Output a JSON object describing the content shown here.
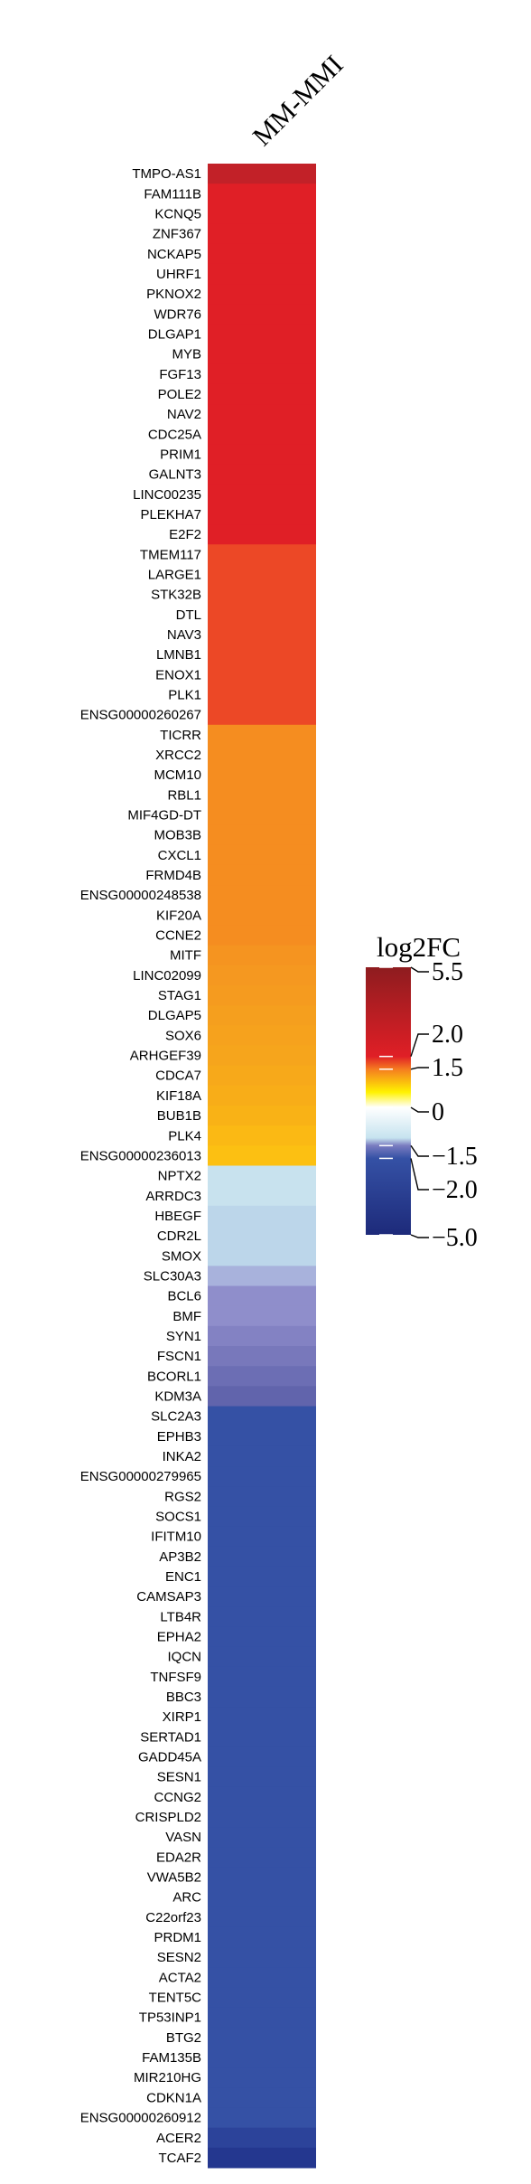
{
  "chart_data": {
    "type": "heatmap",
    "column": "MM-MMI",
    "rows": [
      {
        "gene": "TMPO-AS1",
        "color": "#c22128"
      },
      {
        "gene": "FAM111B",
        "color": "#e01f26"
      },
      {
        "gene": "KCNQ5",
        "color": "#e01f26"
      },
      {
        "gene": "ZNF367",
        "color": "#e01f26"
      },
      {
        "gene": "NCKAP5",
        "color": "#e01f26"
      },
      {
        "gene": "UHRF1",
        "color": "#e01f26"
      },
      {
        "gene": "PKNOX2",
        "color": "#e01f26"
      },
      {
        "gene": "WDR76",
        "color": "#e01f26"
      },
      {
        "gene": "DLGAP1",
        "color": "#e01f26"
      },
      {
        "gene": "MYB",
        "color": "#e01f26"
      },
      {
        "gene": "FGF13",
        "color": "#e01f26"
      },
      {
        "gene": "POLE2",
        "color": "#e01f26"
      },
      {
        "gene": "NAV2",
        "color": "#e01f26"
      },
      {
        "gene": "CDC25A",
        "color": "#e01f26"
      },
      {
        "gene": "PRIM1",
        "color": "#e01f26"
      },
      {
        "gene": "GALNT3",
        "color": "#e01f26"
      },
      {
        "gene": "LINC00235",
        "color": "#e01f26"
      },
      {
        "gene": "PLEKHA7",
        "color": "#e01f26"
      },
      {
        "gene": "E2F2",
        "color": "#e01f26"
      },
      {
        "gene": "TMEM117",
        "color": "#ec4826"
      },
      {
        "gene": "LARGE1",
        "color": "#ec4826"
      },
      {
        "gene": "STK32B",
        "color": "#ec4826"
      },
      {
        "gene": "DTL",
        "color": "#ec4826"
      },
      {
        "gene": "NAV3",
        "color": "#ec4826"
      },
      {
        "gene": "LMNB1",
        "color": "#ec4826"
      },
      {
        "gene": "ENOX1",
        "color": "#ec4826"
      },
      {
        "gene": "PLK1",
        "color": "#ec4826"
      },
      {
        "gene": "ENSG00000260267",
        "color": "#ec4826"
      },
      {
        "gene": "TICRR",
        "color": "#f58d20"
      },
      {
        "gene": "XRCC2",
        "color": "#f58d20"
      },
      {
        "gene": "MCM10",
        "color": "#f58d20"
      },
      {
        "gene": "RBL1",
        "color": "#f58d20"
      },
      {
        "gene": "MIF4GD-DT",
        "color": "#f58d20"
      },
      {
        "gene": "MOB3B",
        "color": "#f58d20"
      },
      {
        "gene": "CXCL1",
        "color": "#f58d20"
      },
      {
        "gene": "FRMD4B",
        "color": "#f58d20"
      },
      {
        "gene": "ENSG00000248538",
        "color": "#f58d20"
      },
      {
        "gene": "KIF20A",
        "color": "#f58d20"
      },
      {
        "gene": "CCNE2",
        "color": "#f58d20"
      },
      {
        "gene": "MITF",
        "color": "#f59420"
      },
      {
        "gene": "LINC02099",
        "color": "#f59820"
      },
      {
        "gene": "STAG1",
        "color": "#f59b1f"
      },
      {
        "gene": "DLGAP5",
        "color": "#f59f1e"
      },
      {
        "gene": "SOX6",
        "color": "#f6a21d"
      },
      {
        "gene": "ARHGEF39",
        "color": "#f6a51c"
      },
      {
        "gene": "CDCA7",
        "color": "#f7a91a"
      },
      {
        "gene": "KIF18A",
        "color": "#f8ad18"
      },
      {
        "gene": "BUB1B",
        "color": "#f9b216"
      },
      {
        "gene": "PLK4",
        "color": "#fbb914"
      },
      {
        "gene": "ENSG00000236013",
        "color": "#fcc012"
      },
      {
        "gene": "NPTX2",
        "color": "#c8e2ee"
      },
      {
        "gene": "ARRDC3",
        "color": "#c8e2ee"
      },
      {
        "gene": "HBEGF",
        "color": "#bcd6ea"
      },
      {
        "gene": "CDR2L",
        "color": "#bcd6ea"
      },
      {
        "gene": "SMOX",
        "color": "#bcd6ea"
      },
      {
        "gene": "SLC30A3",
        "color": "#a8b2dc"
      },
      {
        "gene": "BCL6",
        "color": "#8f8ecb"
      },
      {
        "gene": "BMF",
        "color": "#8f8ecb"
      },
      {
        "gene": "SYN1",
        "color": "#8382c3"
      },
      {
        "gene": "FSCN1",
        "color": "#7878bb"
      },
      {
        "gene": "BCORL1",
        "color": "#6c6eb4"
      },
      {
        "gene": "KDM3A",
        "color": "#6164ac"
      },
      {
        "gene": "SLC2A3",
        "color": "#3551a5"
      },
      {
        "gene": "EPHB3",
        "color": "#3551a5"
      },
      {
        "gene": "INKA2",
        "color": "#3551a5"
      },
      {
        "gene": "ENSG00000279965",
        "color": "#3551a5"
      },
      {
        "gene": "RGS2",
        "color": "#3551a5"
      },
      {
        "gene": "SOCS1",
        "color": "#3551a5"
      },
      {
        "gene": "IFITM10",
        "color": "#3551a5"
      },
      {
        "gene": "AP3B2",
        "color": "#3551a5"
      },
      {
        "gene": "ENC1",
        "color": "#3551a5"
      },
      {
        "gene": "CAMSAP3",
        "color": "#3551a5"
      },
      {
        "gene": "LTB4R",
        "color": "#3551a5"
      },
      {
        "gene": "EPHA2",
        "color": "#3551a5"
      },
      {
        "gene": "IQCN",
        "color": "#3551a5"
      },
      {
        "gene": "TNFSF9",
        "color": "#3551a5"
      },
      {
        "gene": "BBC3",
        "color": "#3551a5"
      },
      {
        "gene": "XIRP1",
        "color": "#3551a5"
      },
      {
        "gene": "SERTAD1",
        "color": "#3551a5"
      },
      {
        "gene": "GADD45A",
        "color": "#3551a5"
      },
      {
        "gene": "SESN1",
        "color": "#3551a5"
      },
      {
        "gene": "CCNG2",
        "color": "#3551a5"
      },
      {
        "gene": "CRISPLD2",
        "color": "#3551a5"
      },
      {
        "gene": "VASN",
        "color": "#3551a5"
      },
      {
        "gene": "EDA2R",
        "color": "#3551a5"
      },
      {
        "gene": "VWA5B2",
        "color": "#3551a5"
      },
      {
        "gene": "ARC",
        "color": "#3551a5"
      },
      {
        "gene": "C22orf23",
        "color": "#3551a5"
      },
      {
        "gene": "PRDM1",
        "color": "#3551a5"
      },
      {
        "gene": "SESN2",
        "color": "#3551a5"
      },
      {
        "gene": "ACTA2",
        "color": "#3551a5"
      },
      {
        "gene": "TENT5C",
        "color": "#3551a5"
      },
      {
        "gene": "TP53INP1",
        "color": "#3551a5"
      },
      {
        "gene": "BTG2",
        "color": "#3551a5"
      },
      {
        "gene": "FAM135B",
        "color": "#3551a5"
      },
      {
        "gene": "MIR210HG",
        "color": "#3551a5"
      },
      {
        "gene": "CDKN1A",
        "color": "#3551a5"
      },
      {
        "gene": "ENSG00000260912",
        "color": "#3551a5"
      },
      {
        "gene": "ACER2",
        "color": "#2c439a"
      },
      {
        "gene": "TCAF2",
        "color": "#24378f"
      }
    ],
    "legend": {
      "title": "log2FC",
      "ticks": [
        {
          "label": "5.5",
          "value": 5.5
        },
        {
          "label": "2.0",
          "value": 2.0
        },
        {
          "label": "1.5",
          "value": 1.5
        },
        {
          "label": "0",
          "value": 0
        },
        {
          "label": "−1.5",
          "value": -1.5
        },
        {
          "label": "−2.0",
          "value": -2.0
        },
        {
          "label": "−5.0",
          "value": -5.0
        }
      ],
      "gradient": [
        {
          "value": 5.5,
          "color": "#8e1c1f"
        },
        {
          "value": 2.0,
          "color": "#e01f26"
        },
        {
          "value": 1.5,
          "color": "#f57c20"
        },
        {
          "value": 0.6,
          "color": "#fff200"
        },
        {
          "value": 0,
          "color": "#ffffff"
        },
        {
          "value": -1.2,
          "color": "#c6e3ef"
        },
        {
          "value": -1.5,
          "color": "#7a7cc0"
        },
        {
          "value": -2.0,
          "color": "#3551a5"
        },
        {
          "value": -5.0,
          "color": "#1d2a7a"
        }
      ]
    }
  }
}
